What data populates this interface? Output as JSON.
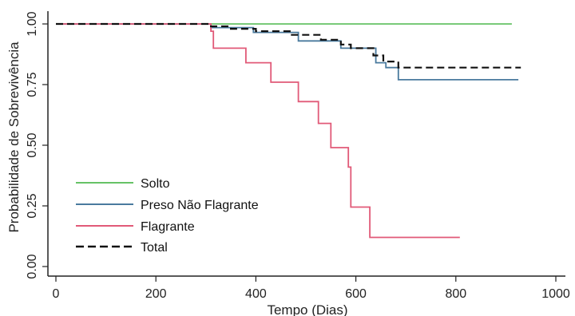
{
  "chart_data": {
    "type": "line",
    "step": true,
    "xlabel": "Tempo (Dias)",
    "ylabel": "Probabilidade de Sobrevivência",
    "xlim": [
      0,
      1000
    ],
    "ylim": [
      0,
      1
    ],
    "xticks": [
      0,
      200,
      400,
      600,
      800,
      1000
    ],
    "yticks": [
      0,
      0.25,
      0.5,
      0.75,
      1
    ],
    "ytick_labels": [
      "0.00",
      "0.25",
      "0.50",
      "0.75",
      "1.00"
    ],
    "grid": false,
    "legend_position": "bottom-left",
    "series": [
      {
        "name": "Solto",
        "color": "#66c266",
        "dash": "solid",
        "points": [
          [
            0,
            1.0
          ],
          [
            912,
            1.0
          ]
        ]
      },
      {
        "name": "Preso Não Flagrante",
        "color": "#4a7a9e",
        "dash": "solid",
        "points": [
          [
            0,
            1.0
          ],
          [
            310,
            1.0
          ],
          [
            310,
            0.985
          ],
          [
            395,
            0.985
          ],
          [
            395,
            0.965
          ],
          [
            485,
            0.965
          ],
          [
            485,
            0.93
          ],
          [
            570,
            0.93
          ],
          [
            570,
            0.9
          ],
          [
            640,
            0.9
          ],
          [
            640,
            0.84
          ],
          [
            660,
            0.84
          ],
          [
            660,
            0.82
          ],
          [
            685,
            0.82
          ],
          [
            685,
            0.77
          ],
          [
            925,
            0.77
          ]
        ]
      },
      {
        "name": "Flagrante",
        "color": "#e15a78",
        "dash": "solid",
        "points": [
          [
            0,
            1.0
          ],
          [
            310,
            1.0
          ],
          [
            310,
            0.97
          ],
          [
            315,
            0.97
          ],
          [
            315,
            0.9
          ],
          [
            380,
            0.9
          ],
          [
            380,
            0.84
          ],
          [
            430,
            0.84
          ],
          [
            430,
            0.76
          ],
          [
            485,
            0.76
          ],
          [
            485,
            0.68
          ],
          [
            525,
            0.68
          ],
          [
            525,
            0.59
          ],
          [
            550,
            0.59
          ],
          [
            550,
            0.49
          ],
          [
            585,
            0.49
          ],
          [
            585,
            0.41
          ],
          [
            590,
            0.41
          ],
          [
            590,
            0.245
          ],
          [
            628,
            0.245
          ],
          [
            628,
            0.12
          ],
          [
            808,
            0.12
          ]
        ]
      },
      {
        "name": "Total",
        "color": "#111111",
        "dash": "dashed",
        "points": [
          [
            0,
            1.0
          ],
          [
            310,
            1.0
          ],
          [
            310,
            0.99
          ],
          [
            350,
            0.99
          ],
          [
            350,
            0.98
          ],
          [
            400,
            0.98
          ],
          [
            400,
            0.97
          ],
          [
            470,
            0.97
          ],
          [
            470,
            0.955
          ],
          [
            530,
            0.955
          ],
          [
            530,
            0.935
          ],
          [
            570,
            0.935
          ],
          [
            570,
            0.915
          ],
          [
            590,
            0.915
          ],
          [
            590,
            0.9
          ],
          [
            635,
            0.9
          ],
          [
            635,
            0.87
          ],
          [
            655,
            0.87
          ],
          [
            655,
            0.845
          ],
          [
            685,
            0.845
          ],
          [
            685,
            0.82
          ],
          [
            930,
            0.82
          ]
        ]
      }
    ]
  }
}
